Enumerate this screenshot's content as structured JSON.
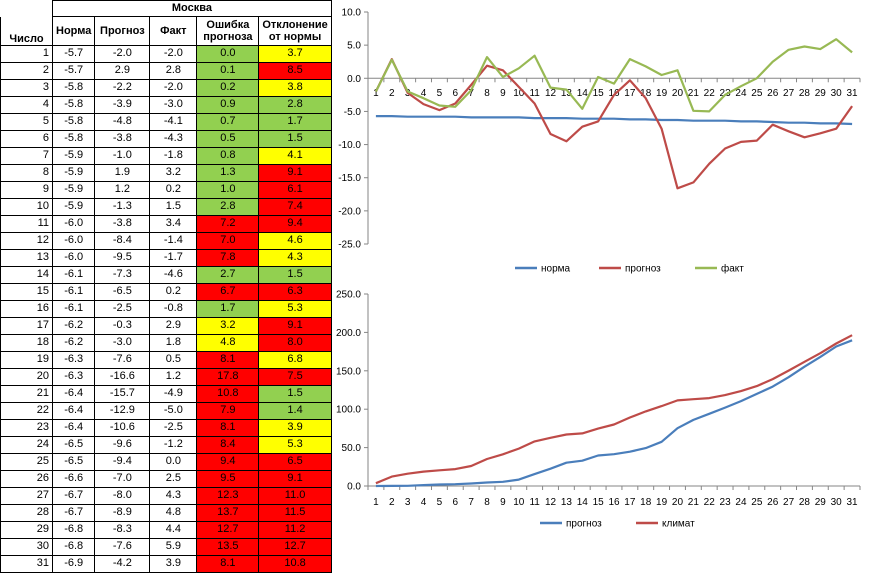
{
  "table": {
    "city": "Москва",
    "headers": {
      "day": "Число",
      "norm": "Норма",
      "forecast": "Прогноз",
      "fact": "Факт",
      "error": "Ошибка прогноза",
      "deviation": "Отклонение от нормы"
    },
    "rows": [
      {
        "day": "1",
        "norm": "-5.7",
        "forecast": "-2.0",
        "fact": "-2.0",
        "error": "0.0",
        "err_color": "green",
        "dev": "3.7",
        "dev_color": "yellow"
      },
      {
        "day": "2",
        "norm": "-5.7",
        "forecast": "2.9",
        "fact": "2.8",
        "error": "0.1",
        "err_color": "green",
        "dev": "8.5",
        "dev_color": "red"
      },
      {
        "day": "3",
        "norm": "-5.8",
        "forecast": "-2.2",
        "fact": "-2.0",
        "error": "0.2",
        "err_color": "green",
        "dev": "3.8",
        "dev_color": "yellow"
      },
      {
        "day": "4",
        "norm": "-5.8",
        "forecast": "-3.9",
        "fact": "-3.0",
        "error": "0.9",
        "err_color": "green",
        "dev": "2.8",
        "dev_color": "green"
      },
      {
        "day": "5",
        "norm": "-5.8",
        "forecast": "-4.8",
        "fact": "-4.1",
        "error": "0.7",
        "err_color": "green",
        "dev": "1.7",
        "dev_color": "green"
      },
      {
        "day": "6",
        "norm": "-5.8",
        "forecast": "-3.8",
        "fact": "-4.3",
        "error": "0.5",
        "err_color": "green",
        "dev": "1.5",
        "dev_color": "green"
      },
      {
        "day": "7",
        "norm": "-5.9",
        "forecast": "-1.0",
        "fact": "-1.8",
        "error": "0.8",
        "err_color": "green",
        "dev": "4.1",
        "dev_color": "yellow"
      },
      {
        "day": "8",
        "norm": "-5.9",
        "forecast": "1.9",
        "fact": "3.2",
        "error": "1.3",
        "err_color": "green",
        "dev": "9.1",
        "dev_color": "red"
      },
      {
        "day": "9",
        "norm": "-5.9",
        "forecast": "1.2",
        "fact": "0.2",
        "error": "1.0",
        "err_color": "green",
        "dev": "6.1",
        "dev_color": "red"
      },
      {
        "day": "10",
        "norm": "-5.9",
        "forecast": "-1.3",
        "fact": "1.5",
        "error": "2.8",
        "err_color": "green",
        "dev": "7.4",
        "dev_color": "red"
      },
      {
        "day": "11",
        "norm": "-6.0",
        "forecast": "-3.8",
        "fact": "3.4",
        "error": "7.2",
        "err_color": "red",
        "dev": "9.4",
        "dev_color": "red"
      },
      {
        "day": "12",
        "norm": "-6.0",
        "forecast": "-8.4",
        "fact": "-1.4",
        "error": "7.0",
        "err_color": "red",
        "dev": "4.6",
        "dev_color": "yellow"
      },
      {
        "day": "13",
        "norm": "-6.0",
        "forecast": "-9.5",
        "fact": "-1.7",
        "error": "7.8",
        "err_color": "red",
        "dev": "4.3",
        "dev_color": "yellow"
      },
      {
        "day": "14",
        "norm": "-6.1",
        "forecast": "-7.3",
        "fact": "-4.6",
        "error": "2.7",
        "err_color": "green",
        "dev": "1.5",
        "dev_color": "green"
      },
      {
        "day": "15",
        "norm": "-6.1",
        "forecast": "-6.5",
        "fact": "0.2",
        "error": "6.7",
        "err_color": "red",
        "dev": "6.3",
        "dev_color": "red"
      },
      {
        "day": "16",
        "norm": "-6.1",
        "forecast": "-2.5",
        "fact": "-0.8",
        "error": "1.7",
        "err_color": "green",
        "dev": "5.3",
        "dev_color": "yellow"
      },
      {
        "day": "17",
        "norm": "-6.2",
        "forecast": "-0.3",
        "fact": "2.9",
        "error": "3.2",
        "err_color": "yellow",
        "dev": "9.1",
        "dev_color": "red"
      },
      {
        "day": "18",
        "norm": "-6.2",
        "forecast": "-3.0",
        "fact": "1.8",
        "error": "4.8",
        "err_color": "yellow",
        "dev": "8.0",
        "dev_color": "red"
      },
      {
        "day": "19",
        "norm": "-6.3",
        "forecast": "-7.6",
        "fact": "0.5",
        "error": "8.1",
        "err_color": "red",
        "dev": "6.8",
        "dev_color": "yellow"
      },
      {
        "day": "20",
        "norm": "-6.3",
        "forecast": "-16.6",
        "fact": "1.2",
        "error": "17.8",
        "err_color": "red",
        "dev": "7.5",
        "dev_color": "red"
      },
      {
        "day": "21",
        "norm": "-6.4",
        "forecast": "-15.7",
        "fact": "-4.9",
        "error": "10.8",
        "err_color": "red",
        "dev": "1.5",
        "dev_color": "green"
      },
      {
        "day": "22",
        "norm": "-6.4",
        "forecast": "-12.9",
        "fact": "-5.0",
        "error": "7.9",
        "err_color": "red",
        "dev": "1.4",
        "dev_color": "green"
      },
      {
        "day": "23",
        "norm": "-6.4",
        "forecast": "-10.6",
        "fact": "-2.5",
        "error": "8.1",
        "err_color": "red",
        "dev": "3.9",
        "dev_color": "yellow"
      },
      {
        "day": "24",
        "norm": "-6.5",
        "forecast": "-9.6",
        "fact": "-1.2",
        "error": "8.4",
        "err_color": "red",
        "dev": "5.3",
        "dev_color": "yellow"
      },
      {
        "day": "25",
        "norm": "-6.5",
        "forecast": "-9.4",
        "fact": "0.0",
        "error": "9.4",
        "err_color": "red",
        "dev": "6.5",
        "dev_color": "red"
      },
      {
        "day": "26",
        "norm": "-6.6",
        "forecast": "-7.0",
        "fact": "2.5",
        "error": "9.5",
        "err_color": "red",
        "dev": "9.1",
        "dev_color": "red"
      },
      {
        "day": "27",
        "norm": "-6.7",
        "forecast": "-8.0",
        "fact": "4.3",
        "error": "12.3",
        "err_color": "red",
        "dev": "11.0",
        "dev_color": "red"
      },
      {
        "day": "28",
        "norm": "-6.7",
        "forecast": "-8.9",
        "fact": "4.8",
        "error": "13.7",
        "err_color": "red",
        "dev": "11.5",
        "dev_color": "red"
      },
      {
        "day": "29",
        "norm": "-6.8",
        "forecast": "-8.3",
        "fact": "4.4",
        "error": "12.7",
        "err_color": "red",
        "dev": "11.2",
        "dev_color": "red"
      },
      {
        "day": "30",
        "norm": "-6.8",
        "forecast": "-7.6",
        "fact": "5.9",
        "error": "13.5",
        "err_color": "red",
        "dev": "12.7",
        "dev_color": "red"
      },
      {
        "day": "31",
        "norm": "-6.9",
        "forecast": "-4.2",
        "fact": "3.9",
        "error": "8.1",
        "err_color": "red",
        "dev": "10.8",
        "dev_color": "red"
      }
    ]
  },
  "colors": {
    "green": "#92d050",
    "yellow": "#ffff00",
    "red": "#ff0000",
    "blue": "#4a7ebb",
    "darkred": "#be4b48",
    "olive": "#98b954"
  },
  "chart_data": [
    {
      "type": "line",
      "title": "",
      "xlabel": "",
      "ylabel": "",
      "x": [
        1,
        2,
        3,
        4,
        5,
        6,
        7,
        8,
        9,
        10,
        11,
        12,
        13,
        14,
        15,
        16,
        17,
        18,
        19,
        20,
        21,
        22,
        23,
        24,
        25,
        26,
        27,
        28,
        29,
        30,
        31
      ],
      "ylim": [
        -25,
        10
      ],
      "yticks": [
        "10.0",
        "5.0",
        "0.0",
        "-5.0",
        "-10.0",
        "-15.0",
        "-20.0",
        "-25.0"
      ],
      "grid": false,
      "legend": "bottom",
      "series": [
        {
          "name": "норма",
          "color": "#4a7ebb",
          "values": [
            -5.7,
            -5.7,
            -5.8,
            -5.8,
            -5.8,
            -5.8,
            -5.9,
            -5.9,
            -5.9,
            -5.9,
            -6.0,
            -6.0,
            -6.0,
            -6.1,
            -6.1,
            -6.1,
            -6.2,
            -6.2,
            -6.3,
            -6.3,
            -6.4,
            -6.4,
            -6.4,
            -6.5,
            -6.5,
            -6.6,
            -6.7,
            -6.7,
            -6.8,
            -6.8,
            -6.9
          ]
        },
        {
          "name": "прогноз",
          "color": "#be4b48",
          "values": [
            -2.0,
            2.9,
            -2.2,
            -3.9,
            -4.8,
            -3.8,
            -1.0,
            1.9,
            1.2,
            -1.3,
            -3.8,
            -8.4,
            -9.5,
            -7.3,
            -6.5,
            -2.5,
            -0.3,
            -3.0,
            -7.6,
            -16.6,
            -15.7,
            -12.9,
            -10.6,
            -9.6,
            -9.4,
            -7.0,
            -8.0,
            -8.9,
            -8.3,
            -7.6,
            -4.2
          ]
        },
        {
          "name": "факт",
          "color": "#98b954",
          "values": [
            -2.0,
            2.8,
            -2.0,
            -3.0,
            -4.1,
            -4.3,
            -1.8,
            3.2,
            0.2,
            1.5,
            3.4,
            -1.4,
            -1.7,
            -4.6,
            0.2,
            -0.8,
            2.9,
            1.8,
            0.5,
            1.2,
            -4.9,
            -5.0,
            -2.5,
            -1.2,
            0.0,
            2.5,
            4.3,
            4.8,
            4.4,
            5.9,
            3.9
          ]
        }
      ]
    },
    {
      "type": "line",
      "title": "",
      "xlabel": "",
      "ylabel": "",
      "x": [
        1,
        2,
        3,
        4,
        5,
        6,
        7,
        8,
        9,
        10,
        11,
        12,
        13,
        14,
        15,
        16,
        17,
        18,
        19,
        20,
        21,
        22,
        23,
        24,
        25,
        26,
        27,
        28,
        29,
        30,
        31
      ],
      "ylim": [
        0,
        250
      ],
      "yticks": [
        "250.0",
        "200.0",
        "150.0",
        "100.0",
        "50.0",
        "0.0"
      ],
      "grid": false,
      "legend": "bottom",
      "series": [
        {
          "name": "прогноз",
          "color": "#4a7ebb",
          "values": [
            0.0,
            0.1,
            0.3,
            1.2,
            1.9,
            2.4,
            3.2,
            4.5,
            5.5,
            8.3,
            15.5,
            22.5,
            30.3,
            33.0,
            39.7,
            41.4,
            44.6,
            49.4,
            57.5,
            75.3,
            86.1,
            94.0,
            102.1,
            110.5,
            119.9,
            129.4,
            141.7,
            155.4,
            168.1,
            181.6,
            189.7
          ]
        },
        {
          "name": "климат",
          "color": "#be4b48",
          "values": [
            3.7,
            12.2,
            16.0,
            18.8,
            20.5,
            22.0,
            26.1,
            35.2,
            41.3,
            48.7,
            58.1,
            62.7,
            67.0,
            68.5,
            74.8,
            80.1,
            89.2,
            97.2,
            104.0,
            111.5,
            113.0,
            114.4,
            118.3,
            123.6,
            130.1,
            139.2,
            150.2,
            161.7,
            172.9,
            185.6,
            196.4
          ]
        }
      ]
    }
  ]
}
